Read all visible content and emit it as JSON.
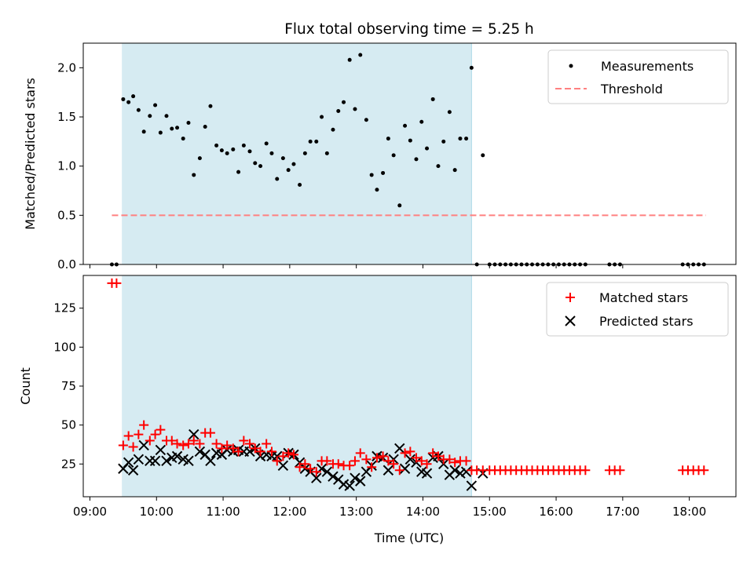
{
  "chart_data": [
    {
      "type": "scatter",
      "title": "Flux total observing time = 5.25 h",
      "xlabel": "",
      "ylabel": "Matched/Predicted stars",
      "xlim_hours": [
        8.9,
        18.7
      ],
      "ylim": [
        0,
        2.25
      ],
      "yticks": [
        0.0,
        0.5,
        1.0,
        1.5,
        2.0
      ],
      "ytick_labels": [
        "0.0",
        "0.5",
        "1.0",
        "1.5",
        "2.0"
      ],
      "observing_window_hours": [
        9.48,
        14.73
      ],
      "threshold": {
        "name": "Threshold",
        "value": 0.5,
        "x_range_hours": [
          9.33,
          18.25
        ],
        "color": "#ff8080"
      },
      "legend": [
        "Measurements",
        "Threshold"
      ],
      "legend_position": "top-right",
      "series": [
        {
          "name": "Measurements",
          "color": "#000000",
          "x_hours": [
            9.33,
            9.4,
            9.5,
            9.58,
            9.65,
            9.73,
            9.81,
            9.9,
            9.98,
            10.06,
            10.15,
            10.23,
            10.31,
            10.4,
            10.48,
            10.56,
            10.65,
            10.73,
            10.81,
            10.9,
            10.98,
            11.06,
            11.15,
            11.23,
            11.31,
            11.4,
            11.48,
            11.56,
            11.65,
            11.73,
            11.81,
            11.9,
            11.98,
            12.06,
            12.15,
            12.23,
            12.31,
            12.4,
            12.48,
            12.56,
            12.65,
            12.73,
            12.81,
            12.9,
            12.98,
            13.06,
            13.15,
            13.23,
            13.31,
            13.4,
            13.48,
            13.56,
            13.65,
            13.73,
            13.81,
            13.9,
            13.98,
            14.06,
            14.15,
            14.23,
            14.31,
            14.4,
            14.48,
            14.56,
            14.65,
            14.73,
            14.81,
            14.9,
            15.0,
            15.08,
            15.16,
            15.24,
            15.32,
            15.4,
            15.48,
            15.56,
            15.64,
            15.72,
            15.8,
            15.88,
            15.96,
            16.04,
            16.12,
            16.2,
            16.28,
            16.36,
            16.44,
            16.8,
            16.88,
            16.96,
            17.9,
            17.98,
            18.06,
            18.14,
            18.22
          ],
          "y": [
            0,
            0,
            1.68,
            1.65,
            1.71,
            1.57,
            1.35,
            1.51,
            1.62,
            1.34,
            1.51,
            1.38,
            1.39,
            1.28,
            1.44,
            0.91,
            1.08,
            1.4,
            1.61,
            1.21,
            1.16,
            1.13,
            1.17,
            0.94,
            1.21,
            1.15,
            1.03,
            1.0,
            1.23,
            1.13,
            0.87,
            1.08,
            0.96,
            1.02,
            0.81,
            1.13,
            1.25,
            1.25,
            1.5,
            1.13,
            1.37,
            1.56,
            1.65,
            2.08,
            1.58,
            2.13,
            1.47,
            0.91,
            0.76,
            0.93,
            1.28,
            1.11,
            0.6,
            1.41,
            1.26,
            1.07,
            1.45,
            1.18,
            1.68,
            1.0,
            1.25,
            1.55,
            0.96,
            1.28,
            1.28,
            2.0,
            0,
            1.11,
            0,
            0,
            0,
            0,
            0,
            0,
            0,
            0,
            0,
            0,
            0,
            0,
            0,
            0,
            0,
            0,
            0,
            0,
            0,
            0,
            0,
            0,
            0,
            0,
            0,
            0,
            0
          ]
        }
      ]
    },
    {
      "type": "scatter",
      "title": "",
      "xlabel": "Time (UTC)",
      "ylabel": "Count",
      "xlim_hours": [
        8.9,
        18.7
      ],
      "ylim": [
        4,
        146
      ],
      "yticks": [
        25,
        50,
        75,
        100,
        125
      ],
      "ytick_labels": [
        "25",
        "50",
        "75",
        "100",
        "125"
      ],
      "xticks_hours": [
        9,
        10,
        11,
        12,
        13,
        14,
        15,
        16,
        17,
        18
      ],
      "xtick_labels": [
        "09:00",
        "10:00",
        "11:00",
        "12:00",
        "13:00",
        "14:00",
        "15:00",
        "16:00",
        "17:00",
        "18:00"
      ],
      "observing_window_hours": [
        9.48,
        14.73
      ],
      "legend": [
        "Matched stars",
        "Predicted stars"
      ],
      "legend_position": "top-right",
      "series": [
        {
          "name": "Matched stars",
          "marker": "plus",
          "color": "#ff0000",
          "x_hours": [
            9.33,
            9.4,
            9.5,
            9.58,
            9.65,
            9.73,
            9.81,
            9.9,
            9.98,
            10.06,
            10.15,
            10.23,
            10.31,
            10.4,
            10.48,
            10.56,
            10.65,
            10.73,
            10.81,
            10.9,
            10.98,
            11.06,
            11.15,
            11.23,
            11.31,
            11.4,
            11.48,
            11.56,
            11.65,
            11.73,
            11.81,
            11.9,
            11.98,
            12.06,
            12.15,
            12.23,
            12.31,
            12.4,
            12.48,
            12.56,
            12.65,
            12.73,
            12.81,
            12.9,
            12.98,
            13.06,
            13.15,
            13.23,
            13.31,
            13.4,
            13.48,
            13.56,
            13.65,
            13.73,
            13.81,
            13.9,
            13.98,
            14.06,
            14.15,
            14.23,
            14.31,
            14.4,
            14.48,
            14.56,
            14.65,
            14.73,
            14.81,
            14.9,
            15.0,
            15.08,
            15.16,
            15.24,
            15.32,
            15.4,
            15.48,
            15.56,
            15.64,
            15.72,
            15.8,
            15.88,
            15.96,
            16.04,
            16.12,
            16.2,
            16.28,
            16.36,
            16.44,
            16.8,
            16.88,
            16.96,
            17.9,
            17.98,
            18.06,
            18.14,
            18.22
          ],
          "y": [
            141,
            141,
            37,
            43,
            36,
            44,
            50,
            40,
            44,
            47,
            40,
            40,
            38,
            37,
            38,
            40,
            38,
            45,
            45,
            38,
            35,
            37,
            35,
            33,
            40,
            38,
            35,
            33,
            38,
            33,
            27,
            30,
            32,
            31,
            23,
            25,
            22,
            20,
            27,
            27,
            25,
            25,
            24,
            24,
            27,
            32,
            28,
            23,
            29,
            30,
            27,
            25,
            21,
            32,
            33,
            29,
            27,
            25,
            32,
            30,
            28,
            28,
            26,
            27,
            27,
            21,
            21,
            21,
            21,
            21,
            21,
            21,
            21,
            21,
            21,
            21,
            21,
            21,
            21,
            21,
            21,
            21,
            21,
            21,
            21,
            21,
            21,
            21,
            21,
            21,
            21,
            21,
            21,
            21,
            21
          ]
        },
        {
          "name": "Predicted stars",
          "marker": "x",
          "color": "#000000",
          "x_hours": [
            9.5,
            9.58,
            9.65,
            9.73,
            9.81,
            9.9,
            9.98,
            10.06,
            10.15,
            10.23,
            10.31,
            10.4,
            10.48,
            10.56,
            10.65,
            10.73,
            10.81,
            10.9,
            10.98,
            11.06,
            11.15,
            11.23,
            11.31,
            11.4,
            11.48,
            11.56,
            11.65,
            11.73,
            11.81,
            11.9,
            11.98,
            12.06,
            12.15,
            12.23,
            12.31,
            12.4,
            12.48,
            12.56,
            12.65,
            12.73,
            12.81,
            12.9,
            12.98,
            13.06,
            13.15,
            13.23,
            13.31,
            13.4,
            13.48,
            13.56,
            13.65,
            13.73,
            13.81,
            13.9,
            13.98,
            14.06,
            14.15,
            14.23,
            14.31,
            14.4,
            14.48,
            14.56,
            14.65,
            14.73,
            14.9
          ],
          "y": [
            22,
            26,
            21,
            28,
            37,
            27,
            27,
            34,
            27,
            29,
            30,
            28,
            27,
            44,
            33,
            31,
            27,
            32,
            31,
            34,
            33,
            34,
            33,
            33,
            35,
            30,
            31,
            30,
            30,
            24,
            32,
            31,
            26,
            22,
            20,
            16,
            22,
            20,
            17,
            15,
            12,
            11,
            16,
            14,
            20,
            24,
            30,
            29,
            21,
            28,
            35,
            22,
            28,
            26,
            20,
            19,
            29,
            30,
            25,
            18,
            21,
            19,
            20,
            11,
            19
          ]
        }
      ]
    }
  ]
}
